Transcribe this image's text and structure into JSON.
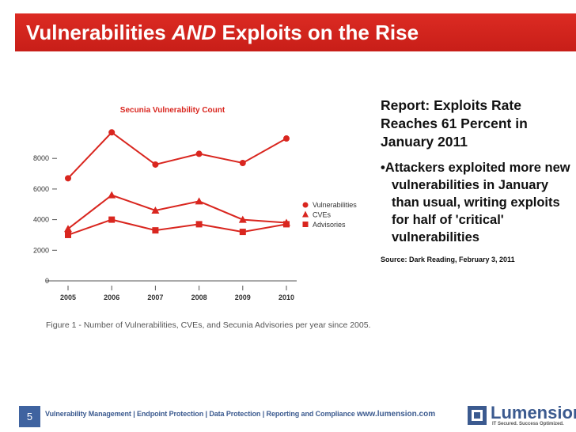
{
  "slide": {
    "title_prefix": "Vulnerabilities ",
    "title_emph": "AND",
    "title_suffix": " Exploits on the Rise",
    "page_number": "5"
  },
  "report": {
    "heading": "Report: Exploits Rate Reaches 61 Percent in January 2011",
    "bullet": "Attackers exploited more new vulnerabilities in January than usual, writing exploits for half of 'critical' vulnerabilities",
    "source": "Source: Dark Reading, February 3, 2011"
  },
  "footer": {
    "nav": "Vulnerability Management  |  Endpoint Protection  |  Data Protection  |  Reporting and Compliance",
    "website": "www.lumension.com",
    "brand": "Lumension",
    "tagline": "IT Secured. Success Optimized."
  },
  "colors": {
    "accent": "#d9261f",
    "navy": "#3b5a8f"
  },
  "chart_data": {
    "type": "line",
    "title": "Secunia Vulnerability Count",
    "caption": "Figure 1 - Number of Vulnerabilities, CVEs, and Secunia Advisories per year since 2005.",
    "categories": [
      "2005",
      "2006",
      "2007",
      "2008",
      "2009",
      "2010"
    ],
    "y_ticks": [
      "0",
      "2000",
      "4000",
      "6000",
      "8000"
    ],
    "ylim": [
      0,
      10000
    ],
    "legend_position": "right",
    "series": [
      {
        "name": "Vulnerabilities",
        "marker": "circle",
        "values": [
          6700,
          9700,
          7600,
          8300,
          7700,
          9300
        ]
      },
      {
        "name": "CVEs",
        "marker": "triangle",
        "values": [
          3400,
          5600,
          4600,
          5200,
          4000,
          3800
        ]
      },
      {
        "name": "Advisories",
        "marker": "square",
        "values": [
          3000,
          4000,
          3300,
          3700,
          3200,
          3700
        ]
      }
    ]
  }
}
